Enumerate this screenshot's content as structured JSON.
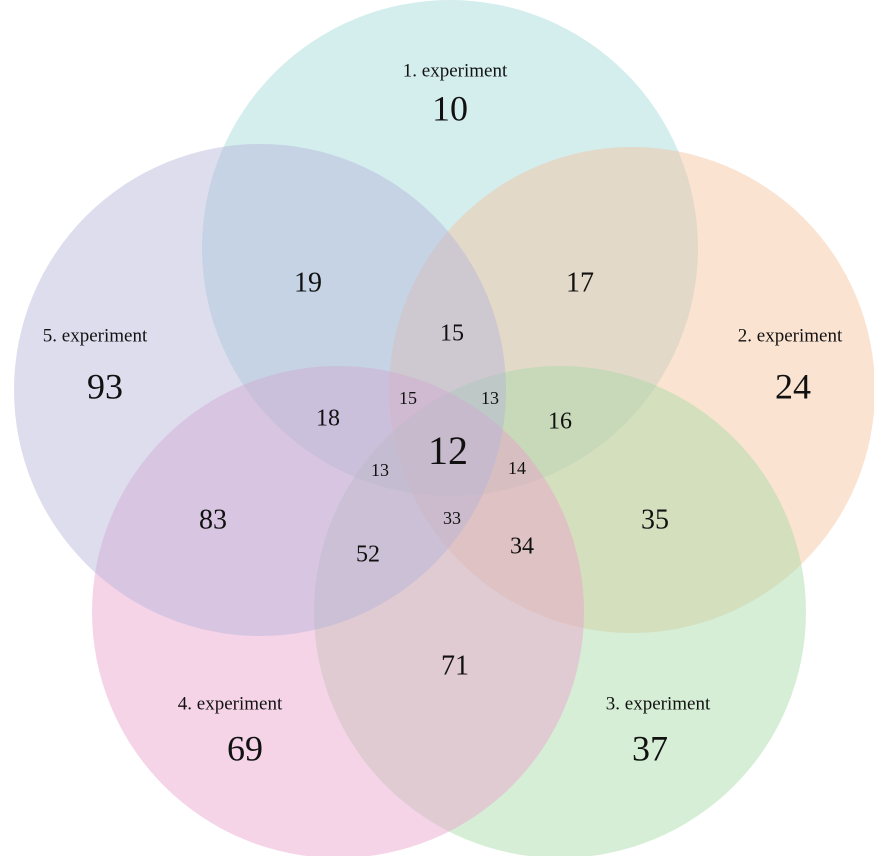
{
  "sets": [
    {
      "label": "1. experiment",
      "color": "#9fd6d6"
    },
    {
      "label": "2. experiment",
      "color": "#f7c19c"
    },
    {
      "label": "3. experiment",
      "color": "#a3d9a3"
    },
    {
      "label": "4. experiment",
      "color": "#eaa0cb"
    },
    {
      "label": "5. experiment",
      "color": "#b3b3d9"
    }
  ],
  "regions": [
    10,
    17,
    24,
    16,
    35,
    34,
    37,
    71,
    69,
    52,
    83,
    13,
    93,
    19,
    18,
    15,
    15,
    13,
    14,
    33,
    12
  ]
}
